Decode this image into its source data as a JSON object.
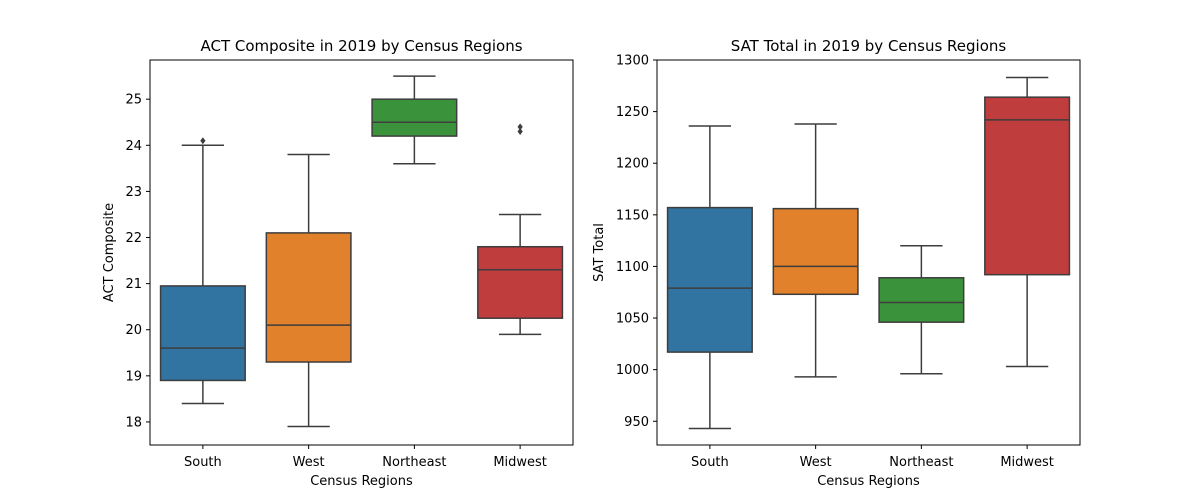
{
  "colors": {
    "South": "#3274a1",
    "West": "#e1812c",
    "Northeast": "#3a923a",
    "Midwest": "#c03d3e",
    "line": "#3d3d3d"
  },
  "chart_data": [
    {
      "type": "box",
      "title": "ACT Composite in 2019 by Census Regions",
      "xlabel": "Census Regions",
      "ylabel": "ACT Composite",
      "categories": [
        "South",
        "West",
        "Northeast",
        "Midwest"
      ],
      "ylim": [
        17.5,
        25.85
      ],
      "yticks": [
        18,
        19,
        20,
        21,
        22,
        23,
        24,
        25
      ],
      "boxes": [
        {
          "category": "South",
          "whisker_low": 18.4,
          "q1": 18.9,
          "median": 19.6,
          "q3": 20.95,
          "whisker_high": 24.0,
          "outliers": [
            24.1
          ]
        },
        {
          "category": "West",
          "whisker_low": 17.9,
          "q1": 19.3,
          "median": 20.1,
          "q3": 22.1,
          "whisker_high": 23.8,
          "outliers": []
        },
        {
          "category": "Northeast",
          "whisker_low": 23.6,
          "q1": 24.2,
          "median": 24.5,
          "q3": 25.0,
          "whisker_high": 25.5,
          "outliers": []
        },
        {
          "category": "Midwest",
          "whisker_low": 19.9,
          "q1": 20.25,
          "median": 21.3,
          "q3": 21.8,
          "whisker_high": 22.5,
          "outliers": [
            24.3,
            24.4
          ]
        }
      ]
    },
    {
      "type": "box",
      "title": "SAT Total in 2019 by Census Regions",
      "xlabel": "Census Regions",
      "ylabel": "SAT Total",
      "categories": [
        "South",
        "West",
        "Northeast",
        "Midwest"
      ],
      "ylim": [
        927,
        1300
      ],
      "yticks": [
        950,
        1000,
        1050,
        1100,
        1150,
        1200,
        1250,
        1300
      ],
      "boxes": [
        {
          "category": "South",
          "whisker_low": 943,
          "q1": 1017,
          "median": 1079,
          "q3": 1157,
          "whisker_high": 1236,
          "outliers": []
        },
        {
          "category": "West",
          "whisker_low": 993,
          "q1": 1073,
          "median": 1100,
          "q3": 1156,
          "whisker_high": 1238,
          "outliers": []
        },
        {
          "category": "Northeast",
          "whisker_low": 996,
          "q1": 1046,
          "median": 1065,
          "q3": 1089,
          "whisker_high": 1120,
          "outliers": []
        },
        {
          "category": "Midwest",
          "whisker_low": 1003,
          "q1": 1092,
          "median": 1242,
          "q3": 1264,
          "whisker_high": 1283,
          "outliers": []
        }
      ]
    }
  ]
}
